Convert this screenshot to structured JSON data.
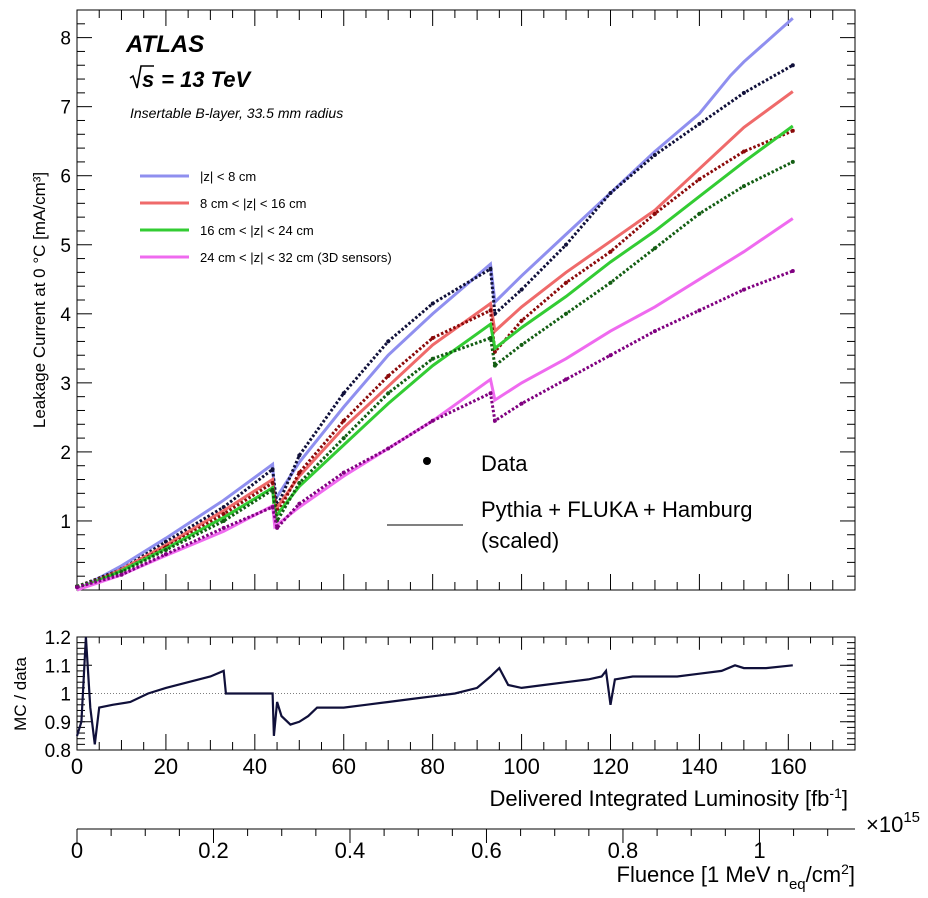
{
  "chart_data": [
    {
      "panel": "main",
      "type": "line",
      "annotations": {
        "experiment": "ATLAS",
        "energy_prefix": "s",
        "energy_suffix": " = 13 TeV",
        "detector": "Insertable B-layer, 33.5 mm radius"
      },
      "ylabel": "Leakage Current at 0 °C [mA/cm³]",
      "ylim": [
        0,
        8.4
      ],
      "y_ticks": [
        1,
        2,
        3,
        4,
        5,
        6,
        7,
        8
      ],
      "xlim": [
        0,
        175
      ],
      "legend_position": "upper-left",
      "series": [
        {
          "name": "|z| < 8 cm",
          "line_color": "#8f8fef",
          "data_color": "#10103a",
          "mc": [
            [
              0,
              0
            ],
            [
              10,
              0.35
            ],
            [
              20,
              0.75
            ],
            [
              33,
              1.3
            ],
            [
              44,
              1.82
            ],
            [
              44.5,
              1.3
            ],
            [
              50,
              1.85
            ],
            [
              60,
              2.65
            ],
            [
              70,
              3.4
            ],
            [
              80,
              4.0
            ],
            [
              93,
              4.72
            ],
            [
              94,
              4.17
            ],
            [
              100,
              4.55
            ],
            [
              110,
              5.15
            ],
            [
              120,
              5.75
            ],
            [
              130,
              6.35
            ],
            [
              140,
              6.9
            ],
            [
              147,
              7.45
            ],
            [
              150,
              7.65
            ],
            [
              161,
              8.28
            ]
          ],
          "data": [
            [
              0,
              0.05
            ],
            [
              10,
              0.3
            ],
            [
              20,
              0.7
            ],
            [
              33,
              1.2
            ],
            [
              44,
              1.75
            ],
            [
              45,
              1.2
            ],
            [
              50,
              1.95
            ],
            [
              60,
              2.85
            ],
            [
              70,
              3.6
            ],
            [
              80,
              4.15
            ],
            [
              93,
              4.65
            ],
            [
              94,
              4.0
            ],
            [
              100,
              4.35
            ],
            [
              110,
              5.0
            ],
            [
              120,
              5.75
            ],
            [
              130,
              6.3
            ],
            [
              140,
              6.75
            ],
            [
              150,
              7.2
            ],
            [
              161,
              7.6
            ]
          ]
        },
        {
          "name": "8 cm < |z| < 16 cm",
          "line_color": "#ef6a6a",
          "data_color": "#8b0a0a",
          "mc": [
            [
              0,
              0
            ],
            [
              10,
              0.3
            ],
            [
              20,
              0.65
            ],
            [
              33,
              1.15
            ],
            [
              44,
              1.6
            ],
            [
              44.5,
              1.15
            ],
            [
              50,
              1.65
            ],
            [
              60,
              2.35
            ],
            [
              70,
              2.95
            ],
            [
              80,
              3.55
            ],
            [
              93,
              4.15
            ],
            [
              94,
              3.75
            ],
            [
              100,
              4.1
            ],
            [
              110,
              4.6
            ],
            [
              120,
              5.05
            ],
            [
              130,
              5.5
            ],
            [
              140,
              6.1
            ],
            [
              150,
              6.7
            ],
            [
              161,
              7.22
            ]
          ],
          "data": [
            [
              0,
              0.05
            ],
            [
              10,
              0.28
            ],
            [
              20,
              0.62
            ],
            [
              33,
              1.1
            ],
            [
              44,
              1.55
            ],
            [
              45,
              1.1
            ],
            [
              50,
              1.7
            ],
            [
              60,
              2.45
            ],
            [
              70,
              3.1
            ],
            [
              80,
              3.65
            ],
            [
              93,
              4.05
            ],
            [
              94,
              3.45
            ],
            [
              100,
              3.9
            ],
            [
              110,
              4.45
            ],
            [
              120,
              4.9
            ],
            [
              130,
              5.45
            ],
            [
              140,
              5.95
            ],
            [
              150,
              6.35
            ],
            [
              161,
              6.65
            ]
          ]
        },
        {
          "name": "16 cm < |z| < 24 cm",
          "line_color": "#33cc33",
          "data_color": "#135e13",
          "mc": [
            [
              0,
              0
            ],
            [
              10,
              0.28
            ],
            [
              20,
              0.6
            ],
            [
              33,
              1.05
            ],
            [
              44,
              1.48
            ],
            [
              44.5,
              1.05
            ],
            [
              50,
              1.5
            ],
            [
              60,
              2.1
            ],
            [
              70,
              2.7
            ],
            [
              80,
              3.25
            ],
            [
              93,
              3.85
            ],
            [
              94,
              3.5
            ],
            [
              100,
              3.8
            ],
            [
              110,
              4.25
            ],
            [
              120,
              4.75
            ],
            [
              130,
              5.2
            ],
            [
              140,
              5.7
            ],
            [
              150,
              6.2
            ],
            [
              161,
              6.72
            ]
          ],
          "data": [
            [
              0,
              0.05
            ],
            [
              10,
              0.26
            ],
            [
              20,
              0.58
            ],
            [
              33,
              1.0
            ],
            [
              44,
              1.45
            ],
            [
              45,
              1.0
            ],
            [
              50,
              1.55
            ],
            [
              60,
              2.2
            ],
            [
              70,
              2.85
            ],
            [
              80,
              3.35
            ],
            [
              93,
              3.65
            ],
            [
              94,
              3.25
            ],
            [
              100,
              3.55
            ],
            [
              110,
              4.0
            ],
            [
              120,
              4.45
            ],
            [
              130,
              4.95
            ],
            [
              140,
              5.45
            ],
            [
              150,
              5.85
            ],
            [
              161,
              6.2
            ]
          ]
        },
        {
          "name": "24 cm < |z| < 32 cm (3D sensors)",
          "line_color": "#ef6aef",
          "data_color": "#800080",
          "mc": [
            [
              0,
              0
            ],
            [
              10,
              0.22
            ],
            [
              20,
              0.5
            ],
            [
              33,
              0.85
            ],
            [
              44,
              1.22
            ],
            [
              44.5,
              0.92
            ],
            [
              50,
              1.2
            ],
            [
              60,
              1.65
            ],
            [
              70,
              2.05
            ],
            [
              80,
              2.45
            ],
            [
              93,
              3.05
            ],
            [
              94,
              2.75
            ],
            [
              100,
              3.0
            ],
            [
              110,
              3.35
            ],
            [
              120,
              3.75
            ],
            [
              130,
              4.1
            ],
            [
              140,
              4.5
            ],
            [
              150,
              4.9
            ],
            [
              161,
              5.38
            ]
          ],
          "data": [
            [
              0,
              0.04
            ],
            [
              10,
              0.22
            ],
            [
              20,
              0.52
            ],
            [
              33,
              0.9
            ],
            [
              44,
              1.2
            ],
            [
              45,
              0.9
            ],
            [
              50,
              1.25
            ],
            [
              60,
              1.7
            ],
            [
              70,
              2.05
            ],
            [
              80,
              2.45
            ],
            [
              93,
              2.85
            ],
            [
              94,
              2.45
            ],
            [
              100,
              2.7
            ],
            [
              110,
              3.05
            ],
            [
              120,
              3.4
            ],
            [
              130,
              3.75
            ],
            [
              140,
              4.05
            ],
            [
              150,
              4.35
            ],
            [
              161,
              4.62
            ]
          ]
        }
      ],
      "extra_legend": {
        "data_label": "Data",
        "mc_label_line1": "Pythia + FLUKA + Hamburg",
        "mc_label_line2": "(scaled)"
      }
    },
    {
      "panel": "ratio",
      "type": "line",
      "ylabel": "MC / data",
      "ylim": [
        0.8,
        1.2
      ],
      "y_ticks": [
        "0.8",
        "0.9",
        "1",
        "1.1",
        "1.2"
      ],
      "reference_line": 1,
      "color": "#10103a",
      "x": [
        0,
        1,
        2,
        3,
        4,
        5,
        8,
        12,
        16,
        20,
        25,
        30,
        33,
        33.5,
        38,
        42,
        44,
        44.3,
        45,
        46,
        48,
        50,
        52,
        54,
        56,
        60,
        65,
        70,
        75,
        80,
        85,
        90,
        93,
        95,
        97,
        100,
        105,
        110,
        115,
        118,
        119,
        120,
        121,
        125,
        130,
        135,
        140,
        145,
        148,
        150,
        155,
        161
      ],
      "y": [
        0.85,
        0.9,
        1.2,
        0.95,
        0.82,
        0.95,
        0.96,
        0.97,
        1.0,
        1.02,
        1.04,
        1.06,
        1.08,
        1.0,
        1.0,
        1.0,
        1.0,
        0.85,
        0.97,
        0.92,
        0.89,
        0.9,
        0.92,
        0.95,
        0.95,
        0.95,
        0.96,
        0.97,
        0.98,
        0.99,
        1.0,
        1.02,
        1.06,
        1.09,
        1.03,
        1.02,
        1.03,
        1.04,
        1.05,
        1.06,
        1.08,
        0.96,
        1.05,
        1.06,
        1.06,
        1.06,
        1.07,
        1.08,
        1.1,
        1.09,
        1.09,
        1.1
      ]
    },
    {
      "panel": "axes",
      "type": "axis",
      "x_ticks": [
        "0",
        "20",
        "40",
        "60",
        "80",
        "100",
        "120",
        "140",
        "160"
      ],
      "xlabel_main": "Delivered Integrated Luminosity [fb",
      "xlabel_main_sup": "-1",
      "xlabel_main_end": "]",
      "fluence_multiplier": "×10",
      "fluence_exponent": "15",
      "fluence_ticks": [
        "0",
        "0.2",
        "0.4",
        "0.6",
        "0.8",
        "1"
      ],
      "fluence_xlim": [
        0,
        1.14
      ],
      "xlabel_fluence": "Fluence [1 MeV n",
      "xlabel_fluence_sub": "eq",
      "xlabel_fluence_mid": "/cm",
      "xlabel_fluence_sup": "2",
      "xlabel_fluence_end": "]"
    }
  ]
}
